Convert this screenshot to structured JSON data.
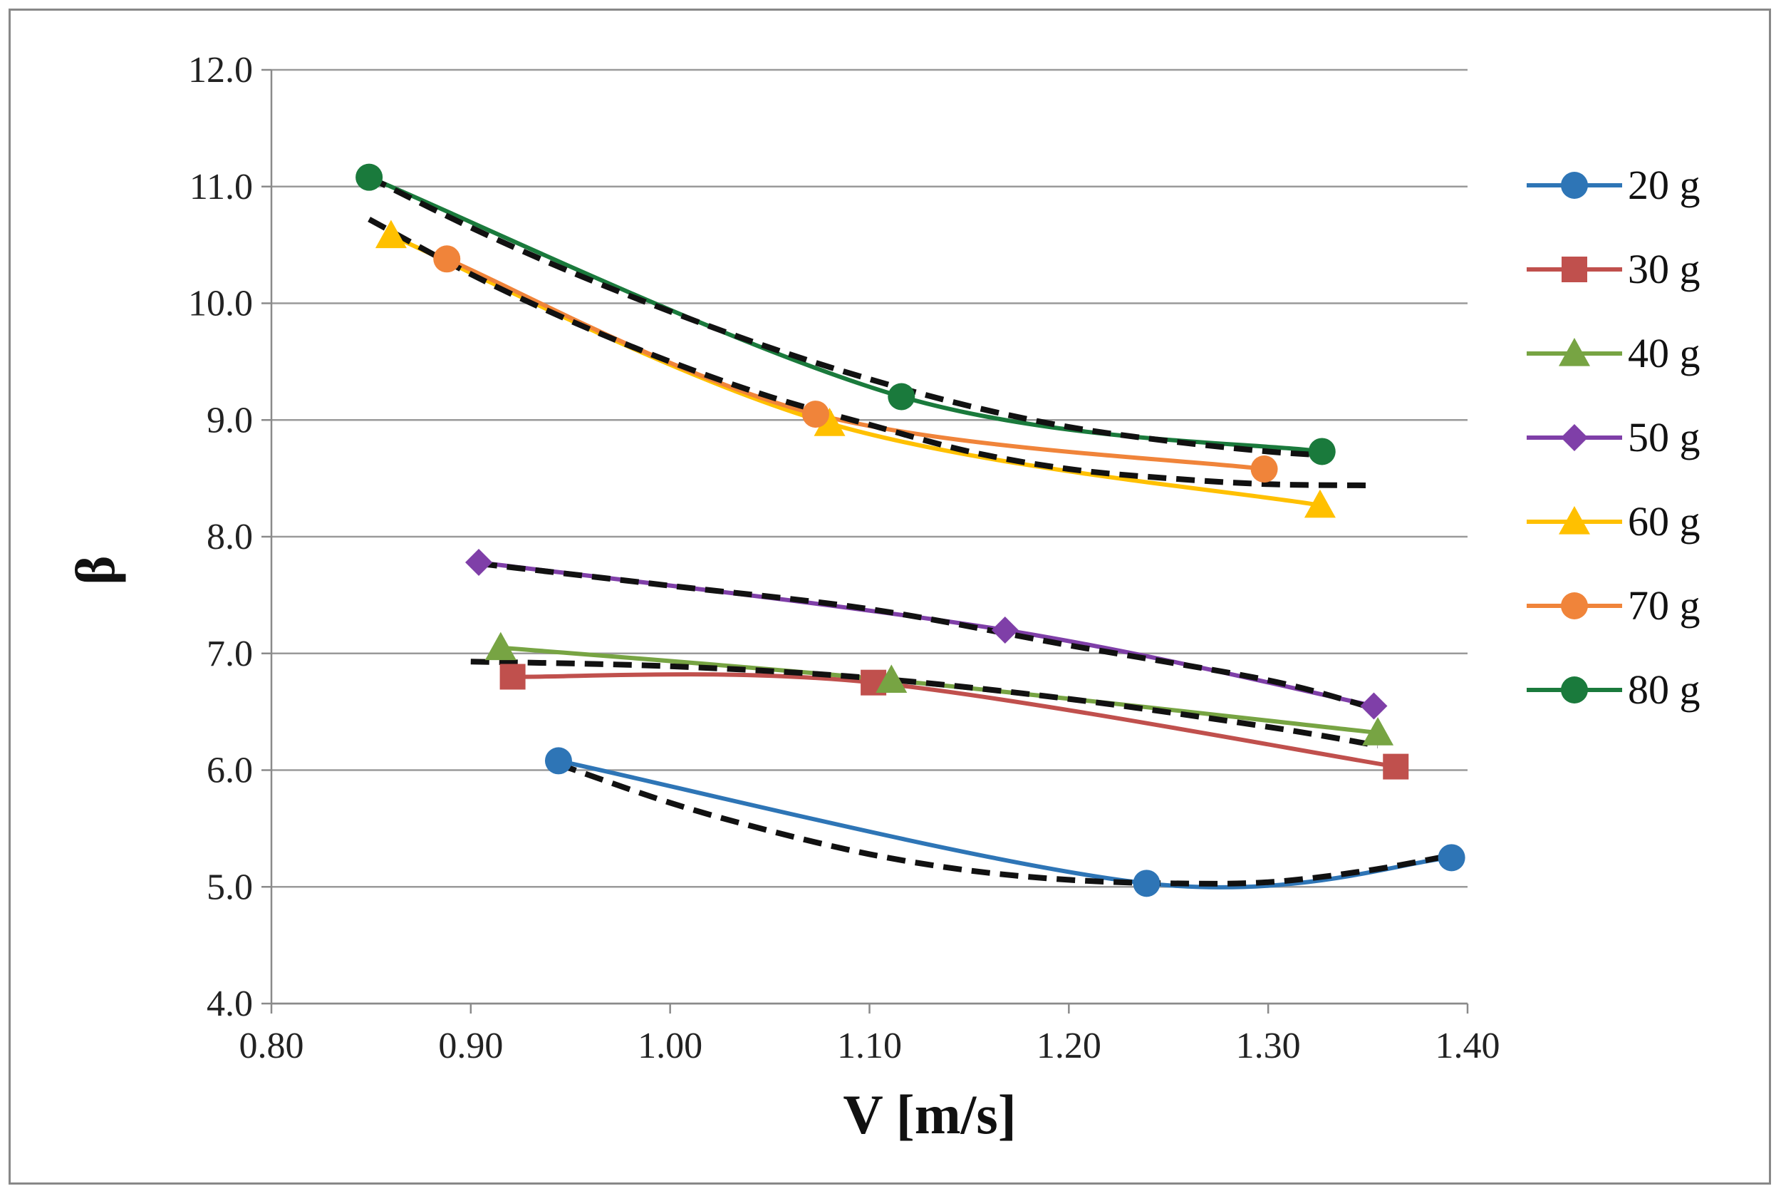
{
  "chart_data": {
    "type": "line",
    "title": "",
    "xlabel": "V [m/s]",
    "ylabel": "β",
    "xlim": [
      0.8,
      1.4
    ],
    "ylim": [
      4.0,
      12.0
    ],
    "xticks": [
      0.8,
      0.9,
      1.0,
      1.1,
      1.2,
      1.3,
      1.4
    ],
    "yticks": [
      4.0,
      5.0,
      6.0,
      7.0,
      8.0,
      9.0,
      10.0,
      11.0,
      12.0
    ],
    "xtick_labels": [
      "0.80",
      "0.90",
      "1.00",
      "1.10",
      "1.20",
      "1.30",
      "1.40"
    ],
    "ytick_labels": [
      "4.0",
      "5.0",
      "6.0",
      "7.0",
      "8.0",
      "9.0",
      "10.0",
      "11.0",
      "12.0"
    ],
    "grid": "horizontal",
    "legend_position": "right",
    "series": [
      {
        "name": "20 g",
        "color": "#2E75B6",
        "marker": "circle",
        "x": [
          0.944,
          1.239,
          1.392
        ],
        "y": [
          6.08,
          5.03,
          5.25
        ]
      },
      {
        "name": "30 g",
        "color": "#C0504D",
        "marker": "square",
        "x": [
          0.921,
          1.102,
          1.364
        ],
        "y": [
          6.8,
          6.75,
          6.03
        ]
      },
      {
        "name": "40 g",
        "color": "#77A443",
        "marker": "triangle",
        "x": [
          0.915,
          1.111,
          1.355
        ],
        "y": [
          7.05,
          6.77,
          6.32
        ]
      },
      {
        "name": "50 g",
        "color": "#7F3FA8",
        "marker": "diamond",
        "x": [
          0.904,
          1.168,
          1.353
        ],
        "y": [
          7.78,
          7.2,
          6.55
        ]
      },
      {
        "name": "60 g",
        "color": "#FFC000",
        "marker": "triangle",
        "x": [
          0.86,
          1.08,
          1.326
        ],
        "y": [
          10.58,
          8.97,
          8.27
        ]
      },
      {
        "name": "70 g",
        "color": "#F0843A",
        "marker": "circle",
        "x": [
          0.888,
          1.073,
          1.298
        ],
        "y": [
          10.38,
          9.05,
          8.58
        ]
      },
      {
        "name": "80 g",
        "color": "#1A7A3C",
        "marker": "circle",
        "x": [
          0.849,
          1.116,
          1.327
        ],
        "y": [
          11.08,
          9.2,
          8.73
        ]
      }
    ],
    "fits": [
      {
        "name": "fit-20g",
        "x": [
          0.944,
          1.0,
          1.05,
          1.1,
          1.15,
          1.2,
          1.25,
          1.3,
          1.35,
          1.392
        ],
        "y": [
          6.05,
          5.72,
          5.48,
          5.28,
          5.14,
          5.06,
          5.03,
          5.04,
          5.14,
          5.27
        ]
      },
      {
        "name": "fit-30-40g",
        "x": [
          0.9,
          1.0,
          1.1,
          1.2,
          1.3,
          1.355
        ],
        "y": [
          6.93,
          6.89,
          6.79,
          6.61,
          6.37,
          6.21
        ]
      },
      {
        "name": "fit-50g",
        "x": [
          0.904,
          1.0,
          1.1,
          1.2,
          1.3,
          1.353
        ],
        "y": [
          7.77,
          7.58,
          7.38,
          7.07,
          6.77,
          6.53
        ]
      },
      {
        "name": "fit-60-70g",
        "x": [
          0.849,
          0.9,
          0.95,
          1.0,
          1.05,
          1.1,
          1.15,
          1.2,
          1.25,
          1.3,
          1.35
        ],
        "y": [
          10.72,
          10.25,
          9.85,
          9.5,
          9.2,
          8.96,
          8.73,
          8.58,
          8.5,
          8.45,
          8.44
        ]
      },
      {
        "name": "fit-80g",
        "x": [
          0.849,
          0.9,
          0.95,
          1.0,
          1.05,
          1.1,
          1.15,
          1.2,
          1.25,
          1.3,
          1.327
        ],
        "y": [
          11.08,
          10.65,
          10.27,
          9.93,
          9.62,
          9.35,
          9.12,
          8.94,
          8.82,
          8.73,
          8.7
        ]
      }
    ]
  }
}
